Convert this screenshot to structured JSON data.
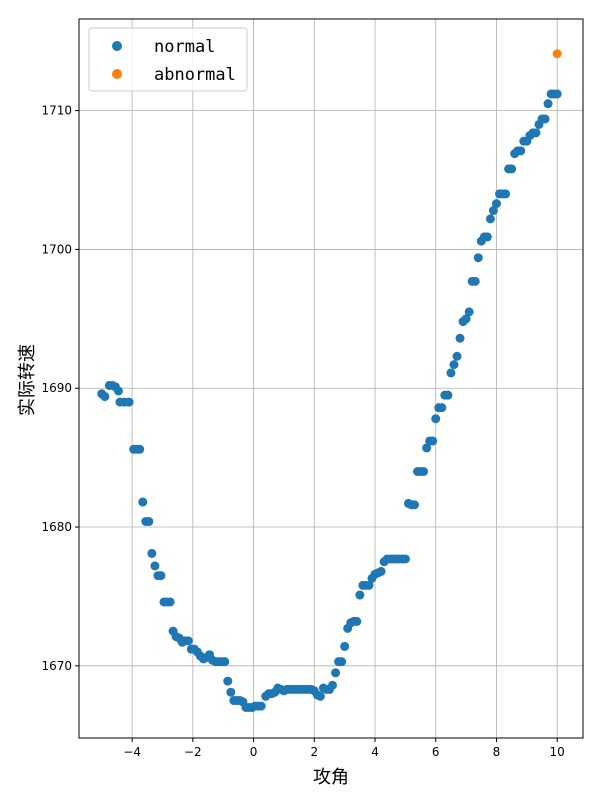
{
  "chart_data": {
    "type": "scatter",
    "title": "",
    "xlabel": "攻角",
    "ylabel": "实际转速",
    "xlim": [
      -5.75,
      10.85
    ],
    "ylim": [
      1664.8,
      1716.6
    ],
    "xticks": [
      -4,
      -2,
      0,
      2,
      4,
      6,
      8,
      10
    ],
    "yticks": [
      1670,
      1680,
      1690,
      1700,
      1710
    ],
    "grid": true,
    "legend_position": "top-left",
    "series": [
      {
        "name": "normal",
        "color": "#1f77b4",
        "points": [
          [
            -5.0,
            1689.6
          ],
          [
            -4.9,
            1689.4
          ],
          [
            -4.75,
            1690.2
          ],
          [
            -4.65,
            1690.2
          ],
          [
            -4.55,
            1690.1
          ],
          [
            -4.45,
            1689.8
          ],
          [
            -4.4,
            1689.0
          ],
          [
            -4.25,
            1689.0
          ],
          [
            -4.1,
            1689.0
          ],
          [
            -3.95,
            1685.6
          ],
          [
            -3.85,
            1685.6
          ],
          [
            -3.75,
            1685.6
          ],
          [
            -3.65,
            1681.8
          ],
          [
            -3.55,
            1680.4
          ],
          [
            -3.45,
            1680.4
          ],
          [
            -3.35,
            1678.1
          ],
          [
            -3.25,
            1677.2
          ],
          [
            -3.15,
            1676.5
          ],
          [
            -3.05,
            1676.5
          ],
          [
            -2.95,
            1674.6
          ],
          [
            -2.85,
            1674.6
          ],
          [
            -2.75,
            1674.6
          ],
          [
            -2.65,
            1672.5
          ],
          [
            -2.55,
            1672.1
          ],
          [
            -2.45,
            1672.0
          ],
          [
            -2.35,
            1671.7
          ],
          [
            -2.25,
            1671.8
          ],
          [
            -2.15,
            1671.8
          ],
          [
            -2.05,
            1671.2
          ],
          [
            -1.95,
            1671.2
          ],
          [
            -1.85,
            1671.0
          ],
          [
            -1.75,
            1670.7
          ],
          [
            -1.65,
            1670.5
          ],
          [
            -1.55,
            1670.6
          ],
          [
            -1.45,
            1670.8
          ],
          [
            -1.35,
            1670.4
          ],
          [
            -1.25,
            1670.3
          ],
          [
            -1.15,
            1670.3
          ],
          [
            -1.05,
            1670.3
          ],
          [
            -0.95,
            1670.3
          ],
          [
            -0.85,
            1668.9
          ],
          [
            -0.75,
            1668.1
          ],
          [
            -0.65,
            1667.5
          ],
          [
            -0.55,
            1667.5
          ],
          [
            -0.45,
            1667.5
          ],
          [
            -0.35,
            1667.4
          ],
          [
            -0.25,
            1667.0
          ],
          [
            -0.15,
            1667.0
          ],
          [
            -0.05,
            1667.0
          ],
          [
            0.05,
            1667.1
          ],
          [
            0.15,
            1667.1
          ],
          [
            0.25,
            1667.1
          ],
          [
            0.4,
            1667.8
          ],
          [
            0.5,
            1668.0
          ],
          [
            0.6,
            1668.0
          ],
          [
            0.7,
            1668.1
          ],
          [
            0.8,
            1668.4
          ],
          [
            0.9,
            1668.3
          ],
          [
            1.0,
            1668.2
          ],
          [
            1.1,
            1668.3
          ],
          [
            1.2,
            1668.3
          ],
          [
            1.3,
            1668.3
          ],
          [
            1.4,
            1668.3
          ],
          [
            1.5,
            1668.3
          ],
          [
            1.6,
            1668.3
          ],
          [
            1.7,
            1668.3
          ],
          [
            1.8,
            1668.3
          ],
          [
            1.9,
            1668.3
          ],
          [
            2.0,
            1668.2
          ],
          [
            2.1,
            1667.9
          ],
          [
            2.2,
            1667.8
          ],
          [
            2.3,
            1668.4
          ],
          [
            2.4,
            1668.3
          ],
          [
            2.5,
            1668.3
          ],
          [
            2.6,
            1668.6
          ],
          [
            2.7,
            1669.5
          ],
          [
            2.8,
            1670.3
          ],
          [
            2.9,
            1670.3
          ],
          [
            3.0,
            1671.4
          ],
          [
            3.1,
            1672.7
          ],
          [
            3.2,
            1673.1
          ],
          [
            3.3,
            1673.2
          ],
          [
            3.4,
            1673.2
          ],
          [
            3.5,
            1675.1
          ],
          [
            3.6,
            1675.8
          ],
          [
            3.7,
            1675.8
          ],
          [
            3.8,
            1675.8
          ],
          [
            3.9,
            1676.3
          ],
          [
            4.0,
            1676.6
          ],
          [
            4.1,
            1676.7
          ],
          [
            4.2,
            1676.8
          ],
          [
            4.3,
            1677.5
          ],
          [
            4.4,
            1677.7
          ],
          [
            4.5,
            1677.7
          ],
          [
            4.6,
            1677.7
          ],
          [
            4.7,
            1677.7
          ],
          [
            4.8,
            1677.7
          ],
          [
            4.9,
            1677.7
          ],
          [
            5.0,
            1677.7
          ],
          [
            5.1,
            1681.7
          ],
          [
            5.2,
            1681.6
          ],
          [
            5.3,
            1681.6
          ],
          [
            5.4,
            1684.0
          ],
          [
            5.5,
            1684.0
          ],
          [
            5.6,
            1684.0
          ],
          [
            5.7,
            1685.7
          ],
          [
            5.8,
            1686.2
          ],
          [
            5.9,
            1686.2
          ],
          [
            6.0,
            1687.8
          ],
          [
            6.1,
            1688.6
          ],
          [
            6.2,
            1688.6
          ],
          [
            6.3,
            1689.5
          ],
          [
            6.4,
            1689.5
          ],
          [
            6.5,
            1691.1
          ],
          [
            6.6,
            1691.7
          ],
          [
            6.7,
            1692.3
          ],
          [
            6.8,
            1693.6
          ],
          [
            6.9,
            1694.8
          ],
          [
            7.0,
            1695.0
          ],
          [
            7.1,
            1695.5
          ],
          [
            7.2,
            1697.7
          ],
          [
            7.3,
            1697.7
          ],
          [
            7.4,
            1699.4
          ],
          [
            7.5,
            1700.6
          ],
          [
            7.6,
            1700.9
          ],
          [
            7.7,
            1700.9
          ],
          [
            7.8,
            1702.2
          ],
          [
            7.9,
            1702.8
          ],
          [
            8.0,
            1703.3
          ],
          [
            8.1,
            1704.0
          ],
          [
            8.2,
            1704.0
          ],
          [
            8.3,
            1704.0
          ],
          [
            8.4,
            1705.8
          ],
          [
            8.5,
            1705.8
          ],
          [
            8.6,
            1706.9
          ],
          [
            8.7,
            1707.1
          ],
          [
            8.8,
            1707.1
          ],
          [
            8.9,
            1707.8
          ],
          [
            9.0,
            1707.8
          ],
          [
            9.1,
            1708.2
          ],
          [
            9.2,
            1708.4
          ],
          [
            9.3,
            1708.4
          ],
          [
            9.4,
            1709.0
          ],
          [
            9.5,
            1709.4
          ],
          [
            9.6,
            1709.4
          ],
          [
            9.7,
            1710.5
          ],
          [
            9.8,
            1711.2
          ],
          [
            9.9,
            1711.2
          ],
          [
            10.0,
            1711.2
          ]
        ]
      },
      {
        "name": "abnormal",
        "color": "#ff7f0e",
        "points": [
          [
            10.0,
            1714.1
          ]
        ]
      }
    ]
  }
}
